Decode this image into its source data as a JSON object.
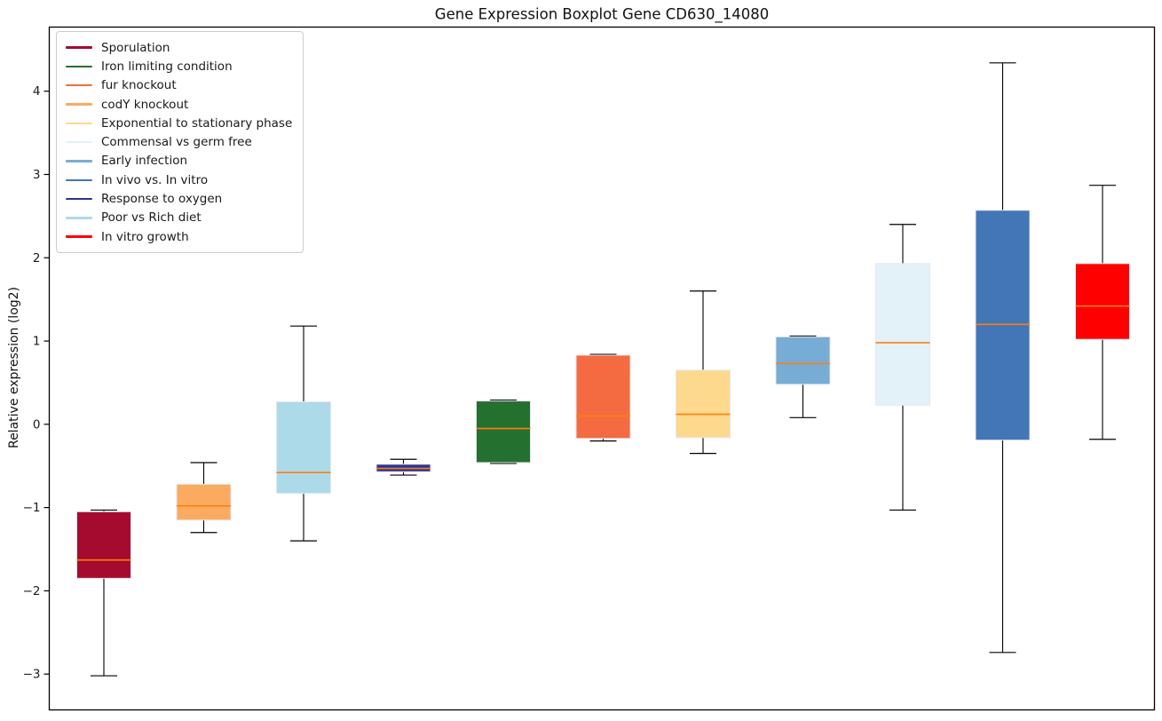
{
  "window": {
    "title": "Gene Expression Boxplot Gene CD630_14080"
  },
  "chart_data": {
    "type": "boxplot",
    "title": "Gene Expression Boxplot Gene CD630_14080",
    "xlabel": "",
    "ylabel": "Relative expression (log2)",
    "ylim": [
      -3.43,
      4.77
    ],
    "yticks": [
      4,
      3,
      2,
      1,
      0,
      -1,
      -2,
      -3
    ],
    "ytick_labels": [
      "4",
      "3",
      "2",
      "1",
      "0",
      "−1",
      "−2",
      "−3"
    ],
    "grid": false,
    "legend_position": "upper-left",
    "median_color": "#ff7f0e",
    "whisker_color": "#000000",
    "box_edge_color": "#e6e6f2",
    "legend": [
      {
        "label": "Sporulation",
        "color": "#a50b2e"
      },
      {
        "label": "Iron limiting condition",
        "color": "#24702f"
      },
      {
        "label": "fur knockout",
        "color": "#f56b41"
      },
      {
        "label": "codY knockout",
        "color": "#fbab60"
      },
      {
        "label": "Exponential to stationary phase",
        "color": "#fcd98c"
      },
      {
        "label": "Commensal vs germ free",
        "color": "#e2f2f8"
      },
      {
        "label": "Early infection",
        "color": "#77acd4"
      },
      {
        "label": "In vivo vs. In vitro",
        "color": "#4276b6"
      },
      {
        "label": "Response to oxygen",
        "color": "#2f3293"
      },
      {
        "label": "Poor vs Rich diet",
        "color": "#addae9"
      },
      {
        "label": "In vitro growth",
        "color": "#ff0000"
      }
    ],
    "boxes": [
      {
        "label": "Sporulation",
        "color": "#a50b2e",
        "whisker_low": -3.02,
        "q1": -1.85,
        "median": -1.63,
        "q3": -1.05,
        "whisker_high": -1.03
      },
      {
        "label": "codY knockout",
        "color": "#fbab60",
        "whisker_low": -1.3,
        "q1": -1.15,
        "median": -0.98,
        "q3": -0.72,
        "whisker_high": -0.46
      },
      {
        "label": "Poor vs Rich diet",
        "color": "#addae9",
        "whisker_low": -1.4,
        "q1": -0.83,
        "median": -0.58,
        "q3": 0.27,
        "whisker_high": 1.18
      },
      {
        "label": "Response to oxygen",
        "color": "#2f3293",
        "whisker_low": -0.61,
        "q1": -0.57,
        "median": -0.53,
        "q3": -0.48,
        "whisker_high": -0.42
      },
      {
        "label": "Iron limiting condition",
        "color": "#24702f",
        "whisker_low": -0.47,
        "q1": -0.46,
        "median": -0.05,
        "q3": 0.28,
        "whisker_high": 0.29
      },
      {
        "label": "fur knockout",
        "color": "#f56b41",
        "whisker_low": -0.2,
        "q1": -0.17,
        "median": 0.1,
        "q3": 0.83,
        "whisker_high": 0.84
      },
      {
        "label": "Exponential to stationary phase",
        "color": "#fcd98c",
        "whisker_low": -0.35,
        "q1": -0.16,
        "median": 0.12,
        "q3": 0.65,
        "whisker_high": 1.6
      },
      {
        "label": "Early infection",
        "color": "#77acd4",
        "whisker_low": 0.08,
        "q1": 0.48,
        "median": 0.73,
        "q3": 1.05,
        "whisker_high": 1.06
      },
      {
        "label": "Commensal vs germ free",
        "color": "#e2f2f8",
        "whisker_low": -1.03,
        "q1": 0.23,
        "median": 0.98,
        "q3": 1.93,
        "whisker_high": 2.4
      },
      {
        "label": "In vivo vs. In vitro",
        "color": "#4276b6",
        "whisker_low": -2.74,
        "q1": -0.19,
        "median": 1.2,
        "q3": 2.57,
        "whisker_high": 4.34
      },
      {
        "label": "In vitro growth",
        "color": "#ff0000",
        "whisker_low": -0.18,
        "q1": 1.02,
        "median": 1.42,
        "q3": 1.93,
        "whisker_high": 2.87
      }
    ]
  }
}
